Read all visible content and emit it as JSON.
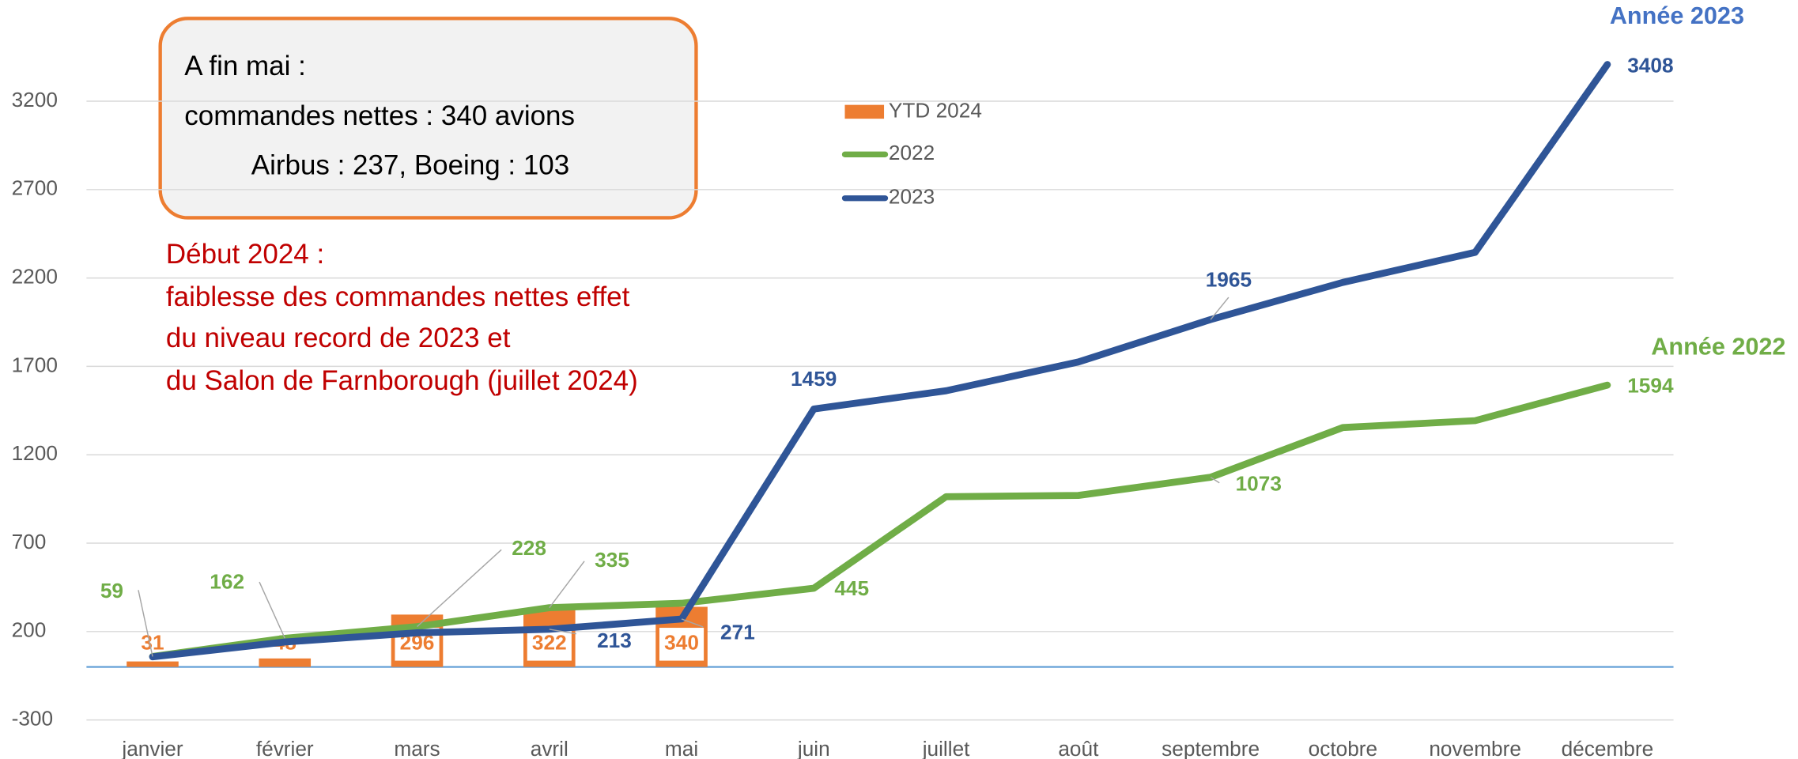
{
  "chart_data": {
    "type": "line",
    "categories": [
      "janvier",
      "février",
      "mars",
      "avril",
      "mai",
      "juin",
      "juillet",
      "août",
      "septembre",
      "octobre",
      "novembre",
      "décembre"
    ],
    "series": [
      {
        "name": "YTD 2024",
        "type": "bar",
        "color": "#ed7d31",
        "values": [
          31,
          48,
          296,
          322,
          340,
          null,
          null,
          null,
          null,
          null,
          null,
          null
        ],
        "value_labels": [
          "31",
          "48",
          "296",
          "322",
          "340",
          null,
          null,
          null,
          null,
          null,
          null,
          null
        ]
      },
      {
        "name": "2022",
        "type": "line",
        "color": "#70ad47",
        "values": [
          59,
          162,
          228,
          335,
          360,
          445,
          963,
          970,
          1073,
          1354,
          1393,
          1594
        ],
        "value_labels": [
          "59",
          "162",
          "228",
          "335",
          null,
          "445",
          null,
          null,
          "1073",
          null,
          null,
          "1594"
        ]
      },
      {
        "name": "2023",
        "type": "line",
        "color": "#2f5597",
        "values": [
          57,
          141,
          193,
          213,
          271,
          1459,
          1562,
          1725,
          1965,
          2175,
          2345,
          3408
        ],
        "value_labels": [
          null,
          null,
          null,
          "213",
          "271",
          "1459",
          null,
          null,
          "1965",
          null,
          null,
          "3408"
        ]
      }
    ],
    "ylim": [
      -300,
      3700
    ],
    "yticks": [
      -300,
      200,
      700,
      1200,
      1700,
      2200,
      2700,
      3200
    ],
    "grid": true,
    "annotations": {
      "box": [
        "A fin mai :",
        "commandes nettes  : 340 avions",
        "Airbus : 237, Boeing : 103"
      ],
      "note": [
        "Début 2024 :",
        "faiblesse des commandes nettes effet",
        "du niveau record de 2023 et",
        "du Salon de Farnborough (juillet 2024)"
      ],
      "series_tags": [
        "Année 2023",
        "Année 2022"
      ]
    }
  }
}
